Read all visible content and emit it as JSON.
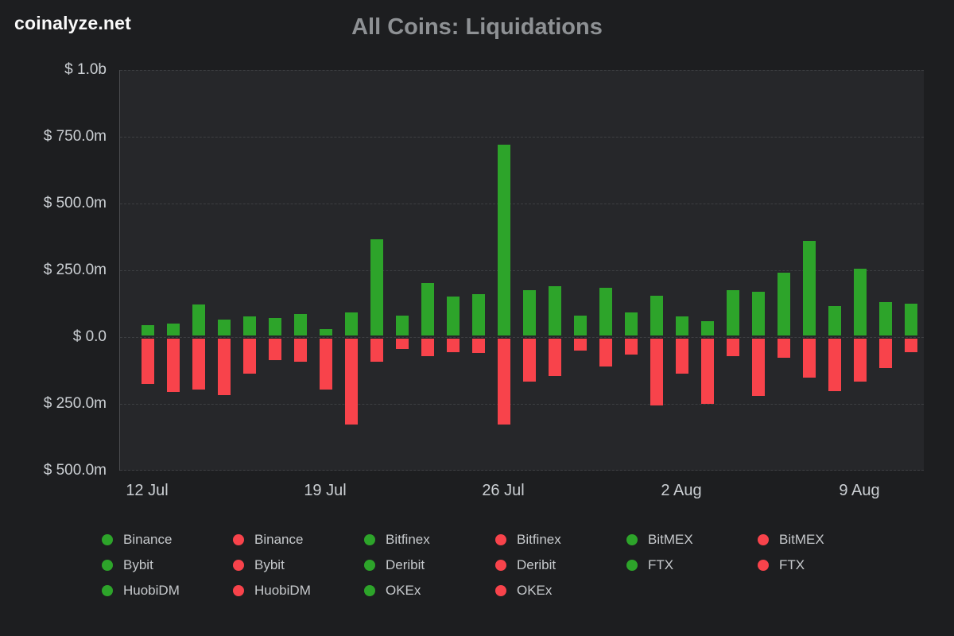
{
  "header": {
    "logo": "coinalyze.net",
    "title": "All Coins: Liquidations"
  },
  "colors": {
    "green": "#2da42a",
    "red": "#f8434b",
    "background": "#1d1e20",
    "plot_background": "#26272a",
    "gridline": "#3d3f42",
    "axis_text": "#cbcfd3",
    "title_text": "#8e9194"
  },
  "chart_data": {
    "type": "bar",
    "title": "All Coins: Liquidations",
    "grid": "dashed horizontal",
    "legend_position": "bottom",
    "ylim_millions": [
      -500,
      1000
    ],
    "y_axis": {
      "tick_labels": [
        "$ 1.0b",
        "$ 750.0m",
        "$ 500.0m",
        "$ 250.0m",
        "$ 0.0",
        "$ 250.0m",
        "$ 500.0m"
      ],
      "tick_values_millions": [
        1000,
        750,
        500,
        250,
        0,
        -250,
        -500
      ]
    },
    "x_ticks": [
      {
        "label": "12 Jul",
        "bar_index": 0
      },
      {
        "label": "19 Jul",
        "bar_index": 7
      },
      {
        "label": "26 Jul",
        "bar_index": 14
      },
      {
        "label": "2 Aug",
        "bar_index": 21
      },
      {
        "label": "9 Aug",
        "bar_index": 28
      }
    ],
    "series": [
      {
        "name": "liquidations-up-green-stacked-by-exchange",
        "color": "#2da42a",
        "values_millions": [
          40,
          45,
          115,
          60,
          70,
          65,
          80,
          25,
          85,
          360,
          75,
          195,
          145,
          155,
          715,
          170,
          185,
          75,
          180,
          85,
          150,
          70,
          55,
          170,
          165,
          235,
          355,
          110,
          250,
          125,
          120
        ]
      },
      {
        "name": "liquidations-down-red-stacked-by-exchange",
        "color": "#f8434b",
        "values_millions": [
          -170,
          -200,
          -190,
          -210,
          -130,
          -80,
          -85,
          -190,
          -320,
          -85,
          -40,
          -65,
          -50,
          -55,
          -320,
          -160,
          -140,
          -45,
          -105,
          -60,
          -250,
          -130,
          -245,
          -65,
          -215,
          -70,
          -145,
          -195,
          -160,
          -110,
          -50
        ]
      }
    ]
  },
  "legend": {
    "columns": [
      [
        {
          "color": "green",
          "label": "Binance"
        },
        {
          "color": "green",
          "label": "Bybit"
        },
        {
          "color": "green",
          "label": "HuobiDM"
        }
      ],
      [
        {
          "color": "red",
          "label": "Binance"
        },
        {
          "color": "red",
          "label": "Bybit"
        },
        {
          "color": "red",
          "label": "HuobiDM"
        }
      ],
      [
        {
          "color": "green",
          "label": "Bitfinex"
        },
        {
          "color": "green",
          "label": "Deribit"
        },
        {
          "color": "green",
          "label": "OKEx"
        }
      ],
      [
        {
          "color": "red",
          "label": "Bitfinex"
        },
        {
          "color": "red",
          "label": "Deribit"
        },
        {
          "color": "red",
          "label": "OKEx"
        }
      ],
      [
        {
          "color": "green",
          "label": "BitMEX"
        },
        {
          "color": "green",
          "label": "FTX"
        }
      ],
      [
        {
          "color": "red",
          "label": "BitMEX"
        },
        {
          "color": "red",
          "label": "FTX"
        }
      ]
    ]
  }
}
